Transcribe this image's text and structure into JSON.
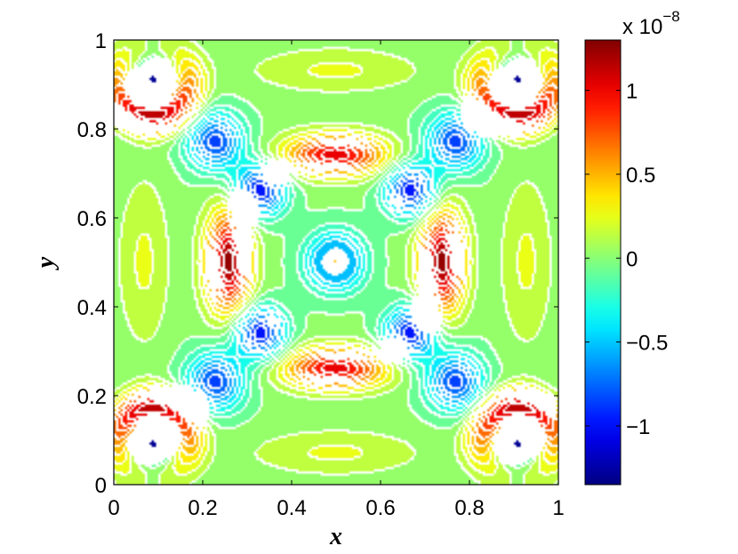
{
  "chart_data": {
    "type": "heatmap",
    "title": "",
    "xlabel": "x",
    "ylabel": "y",
    "xlim": [
      0,
      1
    ],
    "ylim": [
      0,
      1
    ],
    "xticks": [
      "0",
      "0.2",
      "0.4",
      "0.6",
      "0.8",
      "1"
    ],
    "xtick_values": [
      0,
      0.2,
      0.4,
      0.6,
      0.8,
      1
    ],
    "yticks": [
      "0",
      "0.2",
      "0.4",
      "0.6",
      "0.8",
      "1"
    ],
    "ytick_values": [
      0,
      0.2,
      0.4,
      0.6,
      0.8,
      1
    ],
    "colorbar": {
      "colormap": "jet",
      "range": [
        -1.35,
        1.3
      ],
      "scale_prefix": "x 10",
      "scale_exponent": "−8",
      "ticks": [
        "−1",
        "−0.5",
        "0",
        "0.5",
        "1"
      ],
      "tick_values": [
        -1,
        -0.5,
        0,
        0.5,
        1
      ]
    },
    "contour_lines": "white",
    "grid": false,
    "features": [
      {
        "kind": "peak",
        "x": 0.5,
        "y": 0.5,
        "value": 1.3,
        "w": 0.015,
        "h": 0.015
      },
      {
        "kind": "trough",
        "x": 0.5,
        "y": 0.5,
        "value": -0.85,
        "w": 0.045,
        "h": 0.045
      },
      {
        "kind": "peak",
        "x": 0.26,
        "y": 0.5,
        "value": 1.25,
        "w": 0.035,
        "h": 0.08
      },
      {
        "kind": "peak",
        "x": 0.74,
        "y": 0.5,
        "value": 1.25,
        "w": 0.035,
        "h": 0.08
      },
      {
        "kind": "peak",
        "x": 0.5,
        "y": 0.74,
        "value": 1.05,
        "w": 0.08,
        "h": 0.032
      },
      {
        "kind": "peak",
        "x": 0.5,
        "y": 0.26,
        "value": 1.05,
        "w": 0.08,
        "h": 0.032
      },
      {
        "kind": "trough",
        "x": 0.33,
        "y": 0.66,
        "value": -1.0,
        "w": 0.04,
        "h": 0.04
      },
      {
        "kind": "trough",
        "x": 0.67,
        "y": 0.66,
        "value": -1.0,
        "w": 0.04,
        "h": 0.04
      },
      {
        "kind": "trough",
        "x": 0.33,
        "y": 0.34,
        "value": -1.0,
        "w": 0.04,
        "h": 0.04
      },
      {
        "kind": "trough",
        "x": 0.67,
        "y": 0.34,
        "value": -1.0,
        "w": 0.04,
        "h": 0.04
      },
      {
        "kind": "trough",
        "x": 0.23,
        "y": 0.77,
        "value": -0.85,
        "w": 0.045,
        "h": 0.045
      },
      {
        "kind": "trough",
        "x": 0.77,
        "y": 0.77,
        "value": -0.85,
        "w": 0.045,
        "h": 0.045
      },
      {
        "kind": "trough",
        "x": 0.23,
        "y": 0.23,
        "value": -0.85,
        "w": 0.045,
        "h": 0.045
      },
      {
        "kind": "trough",
        "x": 0.77,
        "y": 0.23,
        "value": -0.85,
        "w": 0.045,
        "h": 0.045
      },
      {
        "kind": "trough",
        "x": 0.09,
        "y": 0.91,
        "value": -1.4,
        "w": 0.022,
        "h": 0.022
      },
      {
        "kind": "trough",
        "x": 0.91,
        "y": 0.91,
        "value": -1.4,
        "w": 0.022,
        "h": 0.022
      },
      {
        "kind": "trough",
        "x": 0.09,
        "y": 0.09,
        "value": -1.4,
        "w": 0.022,
        "h": 0.022
      },
      {
        "kind": "trough",
        "x": 0.91,
        "y": 0.09,
        "value": -1.4,
        "w": 0.022,
        "h": 0.022
      },
      {
        "kind": "peak",
        "x": 0.07,
        "y": 0.5,
        "value": 0.22,
        "w": 0.04,
        "h": 0.13
      },
      {
        "kind": "peak",
        "x": 0.93,
        "y": 0.5,
        "value": 0.22,
        "w": 0.04,
        "h": 0.13
      },
      {
        "kind": "peak",
        "x": 0.5,
        "y": 0.93,
        "value": 0.22,
        "w": 0.13,
        "h": 0.035
      },
      {
        "kind": "peak",
        "x": 0.5,
        "y": 0.07,
        "value": 0.22,
        "w": 0.13,
        "h": 0.035
      }
    ],
    "corner_arcs": [
      {
        "cx": 0.09,
        "cy": 0.91,
        "radius": 0.08,
        "width": 0.03,
        "value": 1.15,
        "arc_center_deg": 270,
        "arc_span_deg": 75
      },
      {
        "cx": 0.91,
        "cy": 0.91,
        "radius": 0.08,
        "width": 0.03,
        "value": 1.15,
        "arc_center_deg": 270,
        "arc_span_deg": 75
      },
      {
        "cx": 0.09,
        "cy": 0.09,
        "radius": 0.08,
        "width": 0.03,
        "value": 1.15,
        "arc_center_deg": 90,
        "arc_span_deg": 75
      },
      {
        "cx": 0.91,
        "cy": 0.09,
        "radius": 0.08,
        "width": 0.03,
        "value": 1.15,
        "arc_center_deg": 90,
        "arc_span_deg": 75
      }
    ]
  }
}
